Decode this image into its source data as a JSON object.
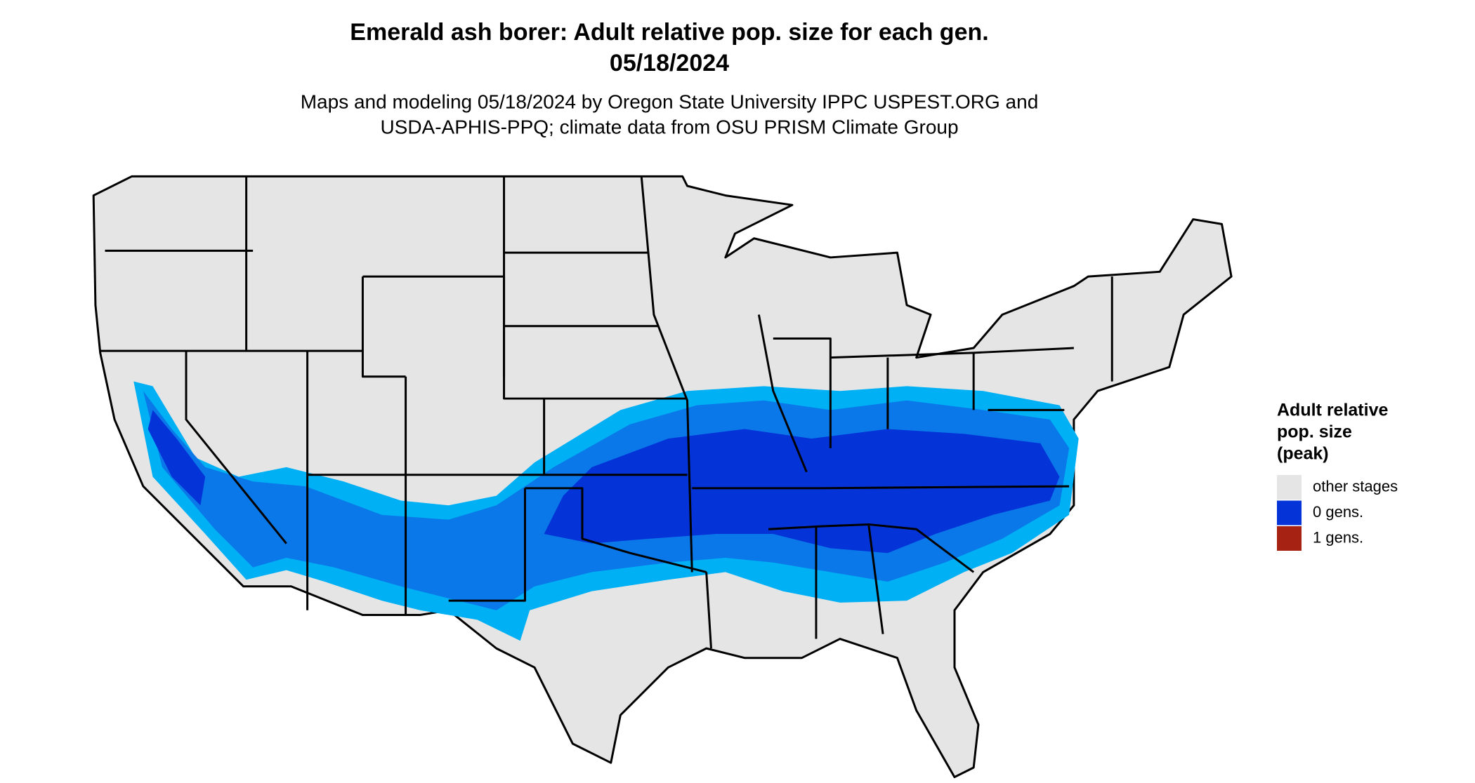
{
  "title": "Emerald ash borer: Adult relative pop. size for each gen.",
  "date": "05/18/2024",
  "subtitle_lines": [
    "Maps and modeling 05/18/2024 by Oregon State University IPPC USPEST.ORG and",
    "USDA-APHIS-PPQ; climate data from OSU PRISM Climate Group"
  ],
  "legend": {
    "title_lines": [
      "Adult relative",
      "pop. size",
      "(peak)"
    ],
    "items": [
      {
        "label": "other stages",
        "color": "#e5e5e5"
      },
      {
        "label": "0 gens.",
        "color": "#0433d8"
      },
      {
        "label": "1 gens.",
        "color": "#a62313"
      }
    ]
  }
}
